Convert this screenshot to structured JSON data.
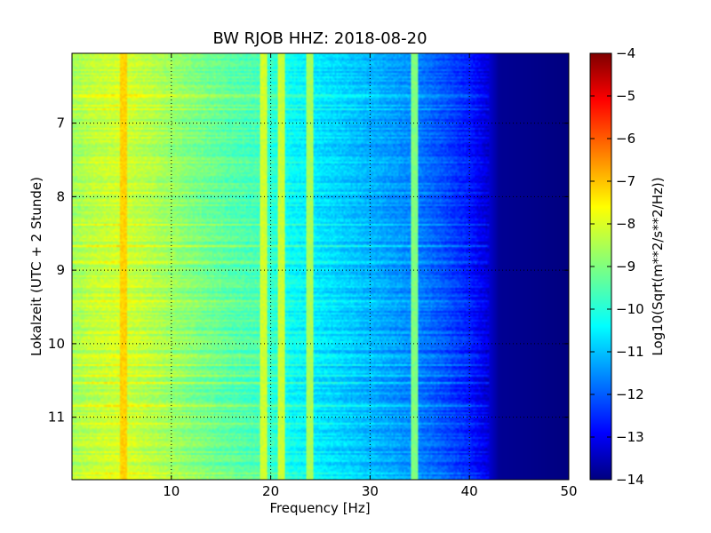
{
  "chart_data": {
    "type": "heatmap",
    "title": "BW RJOB HHZ: 2018-08-20",
    "xlabel": "Frequency [Hz]",
    "ylabel": "Lokalzeit (UTC + 2 Stunde)",
    "xlim": [
      0,
      50
    ],
    "ylim": [
      6.05,
      11.85
    ],
    "y_inverted": true,
    "x_ticks": [
      10,
      20,
      30,
      40,
      50
    ],
    "y_ticks": [
      7,
      8,
      9,
      10,
      11
    ],
    "grid": true,
    "colormap": "jet",
    "colorbar": {
      "label": "Log10(Sqrt(m**2/s**2/Hz))",
      "min": -14,
      "max": -4,
      "ticks": [
        -4,
        -5,
        -6,
        -7,
        -8,
        -9,
        -10,
        -11,
        -12,
        -13,
        -14
      ]
    },
    "spectral_profile": {
      "frequency_hz": [
        0,
        2,
        5,
        8,
        12,
        16,
        19,
        22,
        25,
        28,
        31,
        34,
        37,
        40,
        42,
        43,
        50
      ],
      "level": [
        -8.7,
        -8.4,
        -8.2,
        -8.5,
        -9.0,
        -9.4,
        -9.6,
        -10.2,
        -10.5,
        -10.8,
        -11.1,
        -11.4,
        -11.9,
        -12.5,
        -13.2,
        -13.8,
        -14.0
      ]
    },
    "narrowband_lines": [
      {
        "frequency_hz": 5.2,
        "level": -7.3
      },
      {
        "frequency_hz": 19.3,
        "level": -8.2
      },
      {
        "frequency_hz": 21.0,
        "level": -8.3
      },
      {
        "frequency_hz": 24.0,
        "level": -8.6
      },
      {
        "frequency_hz": 34.5,
        "level": -9.0
      }
    ]
  }
}
